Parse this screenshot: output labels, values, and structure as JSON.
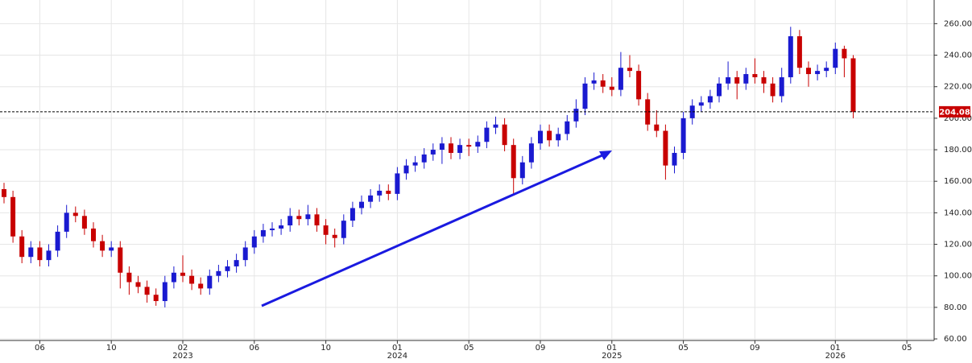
{
  "chart_data": {
    "type": "candlestick",
    "categories": [
      null,
      null,
      null,
      null,
      "06",
      null,
      null,
      null,
      null,
      null,
      null,
      null,
      "10",
      null,
      null,
      null,
      null,
      null,
      null,
      null,
      "02",
      null,
      null,
      null,
      null,
      null,
      null,
      null,
      "06",
      null,
      null,
      null,
      null,
      null,
      null,
      null,
      "10",
      null,
      null,
      null,
      null,
      null,
      null,
      null,
      "01",
      null,
      null,
      null,
      null,
      null,
      null,
      null,
      "05",
      null,
      null,
      null,
      null,
      null,
      null,
      null,
      "09",
      null,
      null,
      null,
      null,
      null,
      null,
      null,
      "01",
      null,
      null,
      null,
      null,
      null,
      null,
      null,
      "05",
      null,
      null,
      null,
      null,
      null,
      null,
      null,
      "09",
      null,
      null,
      null,
      null,
      null,
      null,
      null,
      null,
      "01",
      null,
      null,
      null,
      null,
      null,
      null,
      null,
      "05"
    ],
    "category_years": [
      null,
      null,
      null,
      null,
      null,
      null,
      null,
      null,
      null,
      null,
      null,
      null,
      null,
      null,
      null,
      null,
      null,
      null,
      null,
      null,
      "2023",
      null,
      null,
      null,
      null,
      null,
      null,
      null,
      null,
      null,
      null,
      null,
      null,
      null,
      null,
      null,
      null,
      null,
      null,
      null,
      null,
      null,
      null,
      null,
      "2024",
      null,
      null,
      null,
      null,
      null,
      null,
      null,
      null,
      null,
      null,
      null,
      null,
      null,
      null,
      null,
      null,
      null,
      null,
      null,
      null,
      null,
      null,
      null,
      "2025",
      null,
      null,
      null,
      null,
      null,
      null,
      null,
      null,
      null,
      null,
      null,
      null,
      null,
      null,
      null,
      null,
      null,
      null,
      null,
      null,
      null,
      null,
      null,
      null,
      "2026",
      null,
      null,
      null,
      null,
      null,
      null,
      null,
      null
    ],
    "open": [
      155,
      150,
      125,
      112,
      118,
      110,
      116,
      128,
      140,
      138,
      130,
      122,
      116,
      118,
      102,
      96,
      93,
      88,
      84,
      96,
      102,
      100,
      95,
      92,
      100,
      103,
      106,
      110,
      118,
      125,
      129,
      130,
      132,
      138,
      136,
      139,
      132,
      126,
      124,
      135,
      143,
      147,
      151,
      154,
      152,
      165,
      170,
      172,
      177,
      180,
      184,
      178,
      183,
      182,
      185,
      194,
      196,
      183,
      162,
      172,
      184,
      192,
      186,
      190,
      198,
      206,
      222,
      224,
      220,
      218,
      232,
      230,
      212,
      196,
      192,
      170,
      178,
      200,
      208,
      210,
      214,
      222,
      226,
      222,
      228,
      226,
      222,
      214,
      226,
      252,
      232,
      228,
      230,
      232,
      244,
      238,
      null,
      null,
      null,
      null,
      null,
      null
    ],
    "high": [
      159,
      154,
      129,
      122,
      122,
      120,
      132,
      145,
      144,
      142,
      134,
      126,
      122,
      122,
      106,
      100,
      97,
      92,
      100,
      106,
      113,
      104,
      99,
      104,
      107,
      110,
      114,
      122,
      129,
      133,
      134,
      136,
      143,
      142,
      145,
      143,
      136,
      130,
      139,
      147,
      151,
      155,
      158,
      158,
      169,
      174,
      176,
      181,
      184,
      188,
      188,
      187,
      187,
      189,
      198,
      201,
      200,
      187,
      176,
      188,
      196,
      196,
      194,
      202,
      212,
      226,
      229,
      228,
      226,
      242,
      240,
      234,
      216,
      205,
      196,
      182,
      204,
      212,
      214,
      218,
      226,
      236,
      230,
      232,
      238,
      230,
      226,
      232,
      258,
      256,
      236,
      234,
      236,
      248,
      246,
      240,
      null,
      null,
      null,
      null,
      null,
      null
    ],
    "low": [
      146,
      121,
      108,
      108,
      106,
      106,
      112,
      124,
      134,
      126,
      118,
      112,
      112,
      92,
      88,
      89,
      83,
      81,
      80,
      92,
      96,
      91,
      88,
      88,
      96,
      99,
      102,
      106,
      114,
      121,
      125,
      126,
      128,
      132,
      132,
      128,
      120,
      118,
      120,
      131,
      139,
      143,
      147,
      148,
      148,
      161,
      166,
      168,
      173,
      171,
      174,
      174,
      176,
      178,
      181,
      190,
      179,
      152,
      158,
      168,
      180,
      182,
      182,
      186,
      194,
      202,
      218,
      216,
      214,
      214,
      226,
      208,
      192,
      188,
      161,
      165,
      174,
      196,
      204,
      206,
      210,
      218,
      212,
      218,
      222,
      216,
      210,
      210,
      222,
      228,
      220,
      224,
      226,
      228,
      226,
      200,
      null,
      null,
      null,
      null,
      null,
      null
    ],
    "close": [
      150,
      125,
      112,
      118,
      110,
      116,
      128,
      140,
      138,
      130,
      122,
      116,
      118,
      102,
      96,
      93,
      88,
      84,
      96,
      102,
      100,
      95,
      92,
      100,
      103,
      106,
      110,
      118,
      125,
      129,
      130,
      132,
      138,
      136,
      139,
      132,
      126,
      124,
      135,
      143,
      147,
      151,
      154,
      152,
      165,
      170,
      172,
      177,
      180,
      184,
      178,
      183,
      182,
      185,
      194,
      196,
      183,
      162,
      172,
      184,
      192,
      186,
      190,
      198,
      206,
      222,
      224,
      220,
      218,
      232,
      230,
      212,
      196,
      192,
      170,
      178,
      200,
      208,
      210,
      214,
      222,
      226,
      222,
      228,
      226,
      222,
      214,
      226,
      252,
      232,
      228,
      230,
      232,
      244,
      238,
      204.08,
      null,
      null,
      null,
      null,
      null,
      null
    ],
    "up_color": "#1a1ad0",
    "down_color": "#c80000",
    "ylim": [
      59,
      275
    ],
    "yticks": [
      {
        "value": 60,
        "label": "60.00"
      },
      {
        "value": 80,
        "label": "80.00"
      },
      {
        "value": 100,
        "label": "100.00"
      },
      {
        "value": 120,
        "label": "120.00"
      },
      {
        "value": 140,
        "label": "140.00"
      },
      {
        "value": 160,
        "label": "160.00"
      },
      {
        "value": 180,
        "label": "180.00"
      },
      {
        "value": 200,
        "label": "200.00"
      },
      {
        "value": 220,
        "label": "220.00"
      },
      {
        "value": 240,
        "label": "240.00"
      },
      {
        "value": 260,
        "label": "260.00"
      }
    ],
    "grid": true
  }
}
